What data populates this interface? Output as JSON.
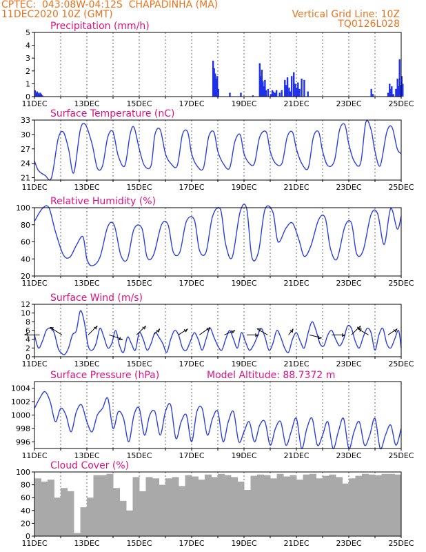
{
  "header": {
    "line1": "CPTEC:  043:08W-04:12S  CHAPADINHA (MA)",
    "line2": "11DEC2020 10Z (GMT)",
    "grid_line": "Vertical Grid Line: 10Z",
    "code": "TQ0126L028"
  },
  "colors": {
    "header": "#e8721c",
    "title": "#e0117f",
    "line": "#2b3fe0",
    "bar": "#1f30e8",
    "cloud": "#a9a9a9",
    "arrow": "#000000"
  },
  "x_dates": [
    "11DEC",
    "13DEC",
    "15DEC",
    "17DEC",
    "19DEC",
    "21DEC",
    "23DEC",
    "25DEC"
  ],
  "chart_data": [
    {
      "type": "bar",
      "title": "Precipitation (mm/h)",
      "ylim": [
        0,
        5
      ],
      "yticks": [
        0,
        1,
        2,
        3,
        4,
        5
      ],
      "x_unit": "days from 11DEC 10Z",
      "x": [
        0.02,
        0.06,
        0.1,
        0.14,
        0.18,
        0.22,
        0.26,
        0.3,
        6.82,
        6.86,
        6.9,
        6.94,
        6.98,
        7.02,
        7.46,
        7.88,
        8.34,
        8.6,
        8.64,
        8.68,
        8.72,
        8.76,
        8.8,
        8.84,
        8.92,
        9.02,
        9.08,
        9.12,
        9.18,
        9.24,
        9.36,
        9.44,
        9.56,
        9.62,
        9.66,
        9.72,
        9.76,
        9.82,
        9.9,
        9.96,
        10.02,
        10.06,
        10.12,
        10.2,
        10.3,
        10.44,
        12.86,
        12.92,
        13.5,
        13.56,
        13.6,
        13.64,
        13.7,
        13.8,
        13.86,
        13.9,
        13.94,
        13.98,
        14.02,
        14.06
      ],
      "values": [
        0.5,
        0.3,
        0.4,
        0.3,
        0.2,
        0.3,
        0.2,
        0.1,
        2.8,
        2.2,
        1.8,
        1.4,
        1.6,
        0.6,
        0.3,
        0.3,
        0.1,
        2.6,
        1.6,
        2.1,
        1.2,
        0.8,
        1.3,
        0.5,
        0.6,
        0.2,
        0.5,
        0.4,
        0.3,
        0.5,
        0.3,
        0.5,
        1.3,
        0.9,
        1.5,
        0.7,
        0.4,
        1.6,
        1.9,
        1.0,
        0.7,
        1.1,
        0.6,
        1.4,
        1.3,
        0.4,
        0.6,
        0.2,
        0.3,
        1.0,
        0.6,
        0.8,
        0.2,
        0.6,
        1.4,
        0.8,
        2.9,
        0.9,
        1.6,
        1.0
      ]
    },
    {
      "type": "line",
      "title": "Surface Temperature (nC)",
      "ylim": [
        20.5,
        33
      ],
      "yticks": [
        21,
        24,
        27,
        30,
        33
      ],
      "x_unit": "days from 11DEC 10Z",
      "x": [
        0.0,
        0.15,
        0.4,
        0.65,
        0.9,
        1.1,
        1.3,
        1.5,
        1.75,
        1.95,
        2.2,
        2.4,
        2.6,
        2.8,
        3.0,
        3.2,
        3.45,
        3.65,
        3.8,
        4.0,
        4.2,
        4.45,
        4.6,
        4.8,
        5.0,
        5.2,
        5.45,
        5.65,
        5.85,
        6.0,
        6.2,
        6.45,
        6.65,
        6.85,
        7.0,
        7.2,
        7.45,
        7.65,
        7.85,
        8.0,
        8.2,
        8.4,
        8.6,
        8.85,
        9.0,
        9.2,
        9.45,
        9.65,
        9.85,
        10.0,
        10.2,
        10.45,
        10.65,
        10.85,
        11.0,
        11.2,
        11.45,
        11.65,
        11.85,
        12.0,
        12.2,
        12.45,
        12.65,
        12.85,
        13.0,
        13.2,
        13.45,
        13.65,
        13.85,
        14.0
      ],
      "values": [
        24.5,
        22.5,
        21.5,
        21.0,
        29.0,
        30.5,
        27.0,
        22.0,
        31.0,
        32.0,
        28.0,
        23.0,
        23.5,
        29.5,
        30.5,
        25.5,
        23.5,
        30.0,
        31.5,
        27.0,
        23.5,
        23.5,
        30.0,
        31.0,
        26.0,
        24.0,
        23.5,
        30.0,
        30.5,
        26.0,
        23.5,
        23.0,
        29.5,
        30.5,
        26.5,
        24.0,
        23.0,
        28.5,
        30.0,
        26.0,
        24.0,
        24.0,
        29.5,
        30.5,
        26.5,
        24.0,
        24.0,
        29.5,
        30.5,
        27.0,
        24.0,
        23.0,
        29.5,
        30.5,
        26.5,
        23.5,
        24.5,
        31.0,
        32.0,
        28.0,
        24.5,
        24.0,
        32.5,
        31.0,
        26.5,
        23.5,
        30.5,
        31.5,
        27.0,
        26.0
      ]
    },
    {
      "type": "line",
      "title": "Relative Humidity (%)",
      "ylim": [
        20,
        100
      ],
      "yticks": [
        20,
        40,
        60,
        80,
        100
      ],
      "x_unit": "days from 11DEC 10Z",
      "x": [
        0.0,
        0.3,
        0.55,
        0.8,
        1.1,
        1.35,
        1.6,
        1.85,
        2.0,
        2.2,
        2.5,
        2.8,
        3.05,
        3.3,
        3.55,
        3.8,
        4.1,
        4.3,
        4.55,
        4.85,
        5.1,
        5.3,
        5.55,
        5.8,
        6.1,
        6.3,
        6.55,
        6.8,
        7.1,
        7.3,
        7.55,
        7.85,
        8.1,
        8.3,
        8.55,
        8.8,
        9.1,
        9.3,
        9.6,
        9.85,
        10.1,
        10.3,
        10.55,
        10.85,
        11.1,
        11.3,
        11.55,
        11.85,
        12.1,
        12.3,
        12.55,
        12.85,
        13.1,
        13.35,
        13.6,
        13.85,
        14.0
      ],
      "values": [
        84,
        99,
        100,
        72,
        45,
        42,
        56,
        66,
        40,
        32,
        42,
        78,
        79,
        44,
        40,
        75,
        76,
        42,
        45,
        80,
        80,
        48,
        48,
        84,
        86,
        50,
        48,
        90,
        98,
        57,
        42,
        95,
        99,
        42,
        48,
        98,
        95,
        60,
        76,
        82,
        62,
        43,
        55,
        86,
        88,
        52,
        40,
        78,
        82,
        46,
        50,
        92,
        93,
        57,
        99,
        75,
        90
      ]
    },
    {
      "type": "line",
      "title": "Surface Wind (m/s)",
      "ylim": [
        0,
        12
      ],
      "yticks": [
        0,
        2,
        4,
        6,
        8,
        10,
        12
      ],
      "x_unit": "days from 11DEC 10Z",
      "x": [
        0.0,
        0.15,
        0.3,
        0.45,
        0.6,
        0.75,
        0.9,
        1.0,
        1.15,
        1.3,
        1.45,
        1.6,
        1.75,
        1.9,
        2.05,
        2.2,
        2.35,
        2.5,
        2.65,
        2.8,
        2.95,
        3.1,
        3.25,
        3.4,
        3.55,
        3.7,
        3.85,
        4.0,
        4.15,
        4.3,
        4.45,
        4.6,
        4.75,
        4.9,
        5.05,
        5.2,
        5.35,
        5.5,
        5.65,
        5.8,
        5.95,
        6.1,
        6.25,
        6.4,
        6.55,
        6.7,
        6.85,
        7.0,
        7.15,
        7.3,
        7.45,
        7.6,
        7.75,
        7.9,
        8.05,
        8.2,
        8.35,
        8.5,
        8.65,
        8.8,
        8.95,
        9.1,
        9.25,
        9.4,
        9.55,
        9.7,
        9.85,
        10.0,
        10.15,
        10.3,
        10.45,
        10.6,
        10.75,
        10.9,
        11.05,
        11.2,
        11.35,
        11.5,
        11.65,
        11.8,
        11.95,
        12.1,
        12.25,
        12.4,
        12.55,
        12.7,
        12.85,
        13.0,
        13.15,
        13.3,
        13.45,
        13.6,
        13.75,
        13.9,
        14.0
      ],
      "values": [
        5.0,
        2.0,
        3.5,
        6.0,
        6.5,
        5.5,
        2.0,
        1.0,
        0.5,
        2.0,
        5.0,
        6.0,
        10.5,
        8.0,
        2.5,
        1.5,
        3.0,
        6.5,
        4.5,
        2.0,
        3.0,
        6.0,
        2.5,
        1.0,
        4.5,
        3.0,
        1.5,
        5.5,
        4.0,
        1.5,
        3.0,
        5.5,
        4.5,
        3.0,
        1.0,
        4.0,
        6.0,
        5.0,
        2.0,
        1.5,
        3.5,
        5.5,
        4.0,
        1.5,
        4.0,
        6.5,
        4.5,
        2.5,
        1.5,
        4.0,
        6.0,
        4.0,
        2.0,
        5.5,
        3.5,
        1.5,
        2.5,
        4.5,
        6.5,
        4.5,
        1.5,
        3.0,
        6.0,
        4.5,
        2.0,
        1.0,
        4.0,
        5.5,
        3.5,
        2.0,
        5.5,
        8.0,
        6.0,
        3.0,
        2.5,
        5.0,
        6.0,
        4.0,
        2.5,
        4.0,
        7.0,
        6.5,
        3.5,
        2.0,
        4.5,
        6.5,
        5.5,
        1.5,
        5.0,
        6.5,
        3.0,
        2.0,
        4.0,
        6.0,
        2.0
      ],
      "arrows": [
        {
          "x": 0.2,
          "dx": -1.0,
          "dy": 0.0
        },
        {
          "x": 1.05,
          "dx": -0.8,
          "dy": 0.5
        },
        {
          "x": 2.05,
          "dx": 0.6,
          "dy": 0.6
        },
        {
          "x": 2.85,
          "dx": 0.9,
          "dy": -0.3
        },
        {
          "x": 3.9,
          "dx": 0.6,
          "dy": 0.6
        },
        {
          "x": 4.55,
          "dx": 0.4,
          "dy": 0.4
        },
        {
          "x": 5.5,
          "dx": 0.6,
          "dy": 0.4
        },
        {
          "x": 6.3,
          "dx": 0.7,
          "dy": 0.5
        },
        {
          "x": 7.25,
          "dx": 0.7,
          "dy": 0.3
        },
        {
          "x": 8.1,
          "dx": 0.8,
          "dy": 0.0
        },
        {
          "x": 8.9,
          "dx": -0.7,
          "dy": 0.4
        },
        {
          "x": 9.7,
          "dx": 0.3,
          "dy": 0.4
        },
        {
          "x": 10.5,
          "dx": 0.8,
          "dy": -0.2
        },
        {
          "x": 11.35,
          "dx": 0.9,
          "dy": 0.0
        },
        {
          "x": 12.1,
          "dx": 0.6,
          "dy": 0.6
        },
        {
          "x": 12.75,
          "dx": -0.7,
          "dy": 0.4
        },
        {
          "x": 13.5,
          "dx": 0.6,
          "dy": 0.4
        }
      ]
    },
    {
      "type": "line",
      "title": "Surface Pressure (hPa)",
      "annotation": "Model Altitude: 88.7372 m",
      "ylim": [
        995,
        1005
      ],
      "yticks": [
        996,
        998,
        1000,
        1002,
        1004
      ],
      "x_unit": "days from 11DEC 10Z",
      "x": [
        0.0,
        0.2,
        0.4,
        0.6,
        0.8,
        1.0,
        1.2,
        1.4,
        1.6,
        1.8,
        2.0,
        2.2,
        2.4,
        2.6,
        2.8,
        3.0,
        3.2,
        3.4,
        3.6,
        3.8,
        4.0,
        4.2,
        4.4,
        4.6,
        4.8,
        5.0,
        5.2,
        5.4,
        5.6,
        5.8,
        6.0,
        6.2,
        6.4,
        6.6,
        6.8,
        7.0,
        7.2,
        7.4,
        7.6,
        7.8,
        8.0,
        8.2,
        8.4,
        8.6,
        8.8,
        9.0,
        9.2,
        9.4,
        9.6,
        9.8,
        10.0,
        10.2,
        10.4,
        10.6,
        10.8,
        11.0,
        11.2,
        11.4,
        11.6,
        11.8,
        12.0,
        12.2,
        12.4,
        12.6,
        12.8,
        13.0,
        13.2,
        13.4,
        13.6,
        13.8,
        14.0
      ],
      "values": [
        1001.0,
        1002.5,
        1003.5,
        1002.0,
        999.0,
        1001.0,
        1000.0,
        997.5,
        1000.5,
        1001.5,
        999.0,
        997.5,
        1000.0,
        1001.0,
        1002.5,
        998.0,
        1000.5,
        999.5,
        996.0,
        1000.0,
        1001.0,
        997.0,
        1000.0,
        1000.5,
        997.0,
        1000.5,
        1001.5,
        996.5,
        999.0,
        1000.0,
        996.0,
        1000.5,
        1001.0,
        997.0,
        999.5,
        1000.5,
        996.0,
        999.0,
        1000.5,
        996.0,
        997.5,
        999.0,
        996.0,
        998.5,
        999.0,
        995.5,
        998.0,
        999.0,
        995.5,
        997.5,
        999.5,
        995.0,
        998.0,
        999.5,
        995.5,
        997.0,
        999.0,
        995.0,
        997.5,
        999.5,
        995.0,
        997.5,
        999.0,
        995.5,
        997.0,
        999.5,
        995.0,
        997.0,
        998.5,
        995.5,
        998.0
      ]
    },
    {
      "type": "bar",
      "title": "Cloud Cover (%)",
      "ylim": [
        0,
        100
      ],
      "yticks": [
        0,
        20,
        40,
        60,
        80,
        100
      ],
      "x_unit": "days from 11DEC 10Z",
      "x": [
        0.0,
        0.25,
        0.5,
        0.75,
        1.0,
        1.25,
        1.5,
        1.75,
        2.0,
        2.25,
        2.5,
        2.75,
        3.0,
        3.25,
        3.5,
        3.75,
        4.0,
        4.25,
        4.5,
        4.75,
        5.0,
        5.25,
        5.5,
        5.75,
        6.0,
        6.25,
        6.5,
        6.75,
        7.0,
        7.25,
        7.5,
        7.75,
        8.0,
        8.25,
        8.5,
        8.75,
        9.0,
        9.25,
        9.5,
        9.75,
        10.0,
        10.25,
        10.5,
        10.75,
        11.0,
        11.25,
        11.5,
        11.75,
        12.0,
        12.25,
        12.5,
        12.75,
        13.0,
        13.25,
        13.5,
        13.75
      ],
      "values": [
        90,
        85,
        88,
        60,
        75,
        70,
        5,
        45,
        60,
        95,
        95,
        97,
        75,
        55,
        40,
        92,
        70,
        92,
        90,
        80,
        90,
        92,
        78,
        95,
        93,
        88,
        96,
        92,
        97,
        95,
        92,
        85,
        72,
        94,
        96,
        95,
        90,
        97,
        93,
        95,
        88,
        96,
        97,
        90,
        94,
        96,
        92,
        82,
        90,
        94,
        97,
        96,
        95,
        97,
        97,
        96
      ]
    }
  ]
}
